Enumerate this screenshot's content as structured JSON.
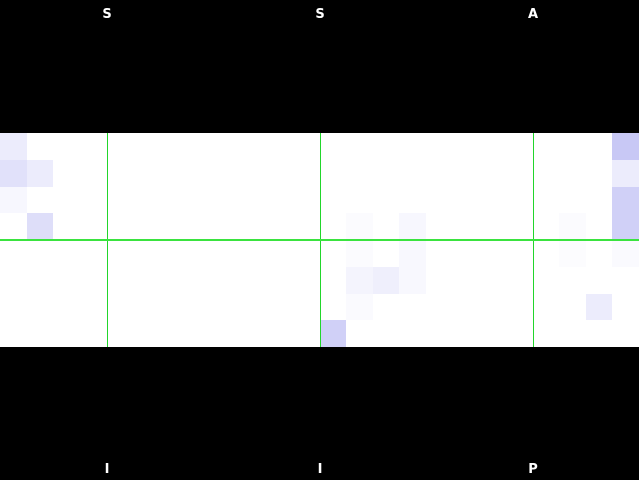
{
  "top_labels": [
    {
      "text": "S"
    },
    {
      "text": "S"
    },
    {
      "text": "A"
    }
  ],
  "bottom_labels": [
    {
      "text": "I"
    },
    {
      "text": "I"
    },
    {
      "text": "P"
    }
  ],
  "colors": {
    "background": "#000000",
    "panel": "#ffffff",
    "gridline": "#22d62b",
    "cell_base": "#c8c8f5"
  },
  "grid": {
    "columns": 24,
    "rows": 8,
    "shaded_cells": [
      {
        "col": 0,
        "row": 0,
        "level": 0.35
      },
      {
        "col": 0,
        "row": 1,
        "level": 0.55
      },
      {
        "col": 1,
        "row": 1,
        "level": 0.35
      },
      {
        "col": 0,
        "row": 2,
        "level": 0.15
      },
      {
        "col": 1,
        "row": 3,
        "level": 0.6
      },
      {
        "col": 13,
        "row": 3,
        "level": 0.08
      },
      {
        "col": 15,
        "row": 3,
        "level": 0.15
      },
      {
        "col": 21,
        "row": 3,
        "level": 0.08
      },
      {
        "col": 23,
        "row": 0,
        "level": 1.0
      },
      {
        "col": 23,
        "row": 1,
        "level": 0.35
      },
      {
        "col": 23,
        "row": 2,
        "level": 0.85
      },
      {
        "col": 23,
        "row": 3,
        "level": 0.85
      },
      {
        "col": 13,
        "row": 4,
        "level": 0.08
      },
      {
        "col": 15,
        "row": 4,
        "level": 0.12
      },
      {
        "col": 21,
        "row": 4,
        "level": 0.06
      },
      {
        "col": 23,
        "row": 4,
        "level": 0.1
      },
      {
        "col": 13,
        "row": 5,
        "level": 0.2
      },
      {
        "col": 14,
        "row": 5,
        "level": 0.3
      },
      {
        "col": 15,
        "row": 5,
        "level": 0.12
      },
      {
        "col": 13,
        "row": 6,
        "level": 0.1
      },
      {
        "col": 22,
        "row": 6,
        "level": 0.35
      },
      {
        "col": 12,
        "row": 7,
        "level": 0.85
      }
    ],
    "vertical_lines_at_columns": [
      4,
      12,
      20
    ],
    "horizontal_line_after_row": 4
  }
}
